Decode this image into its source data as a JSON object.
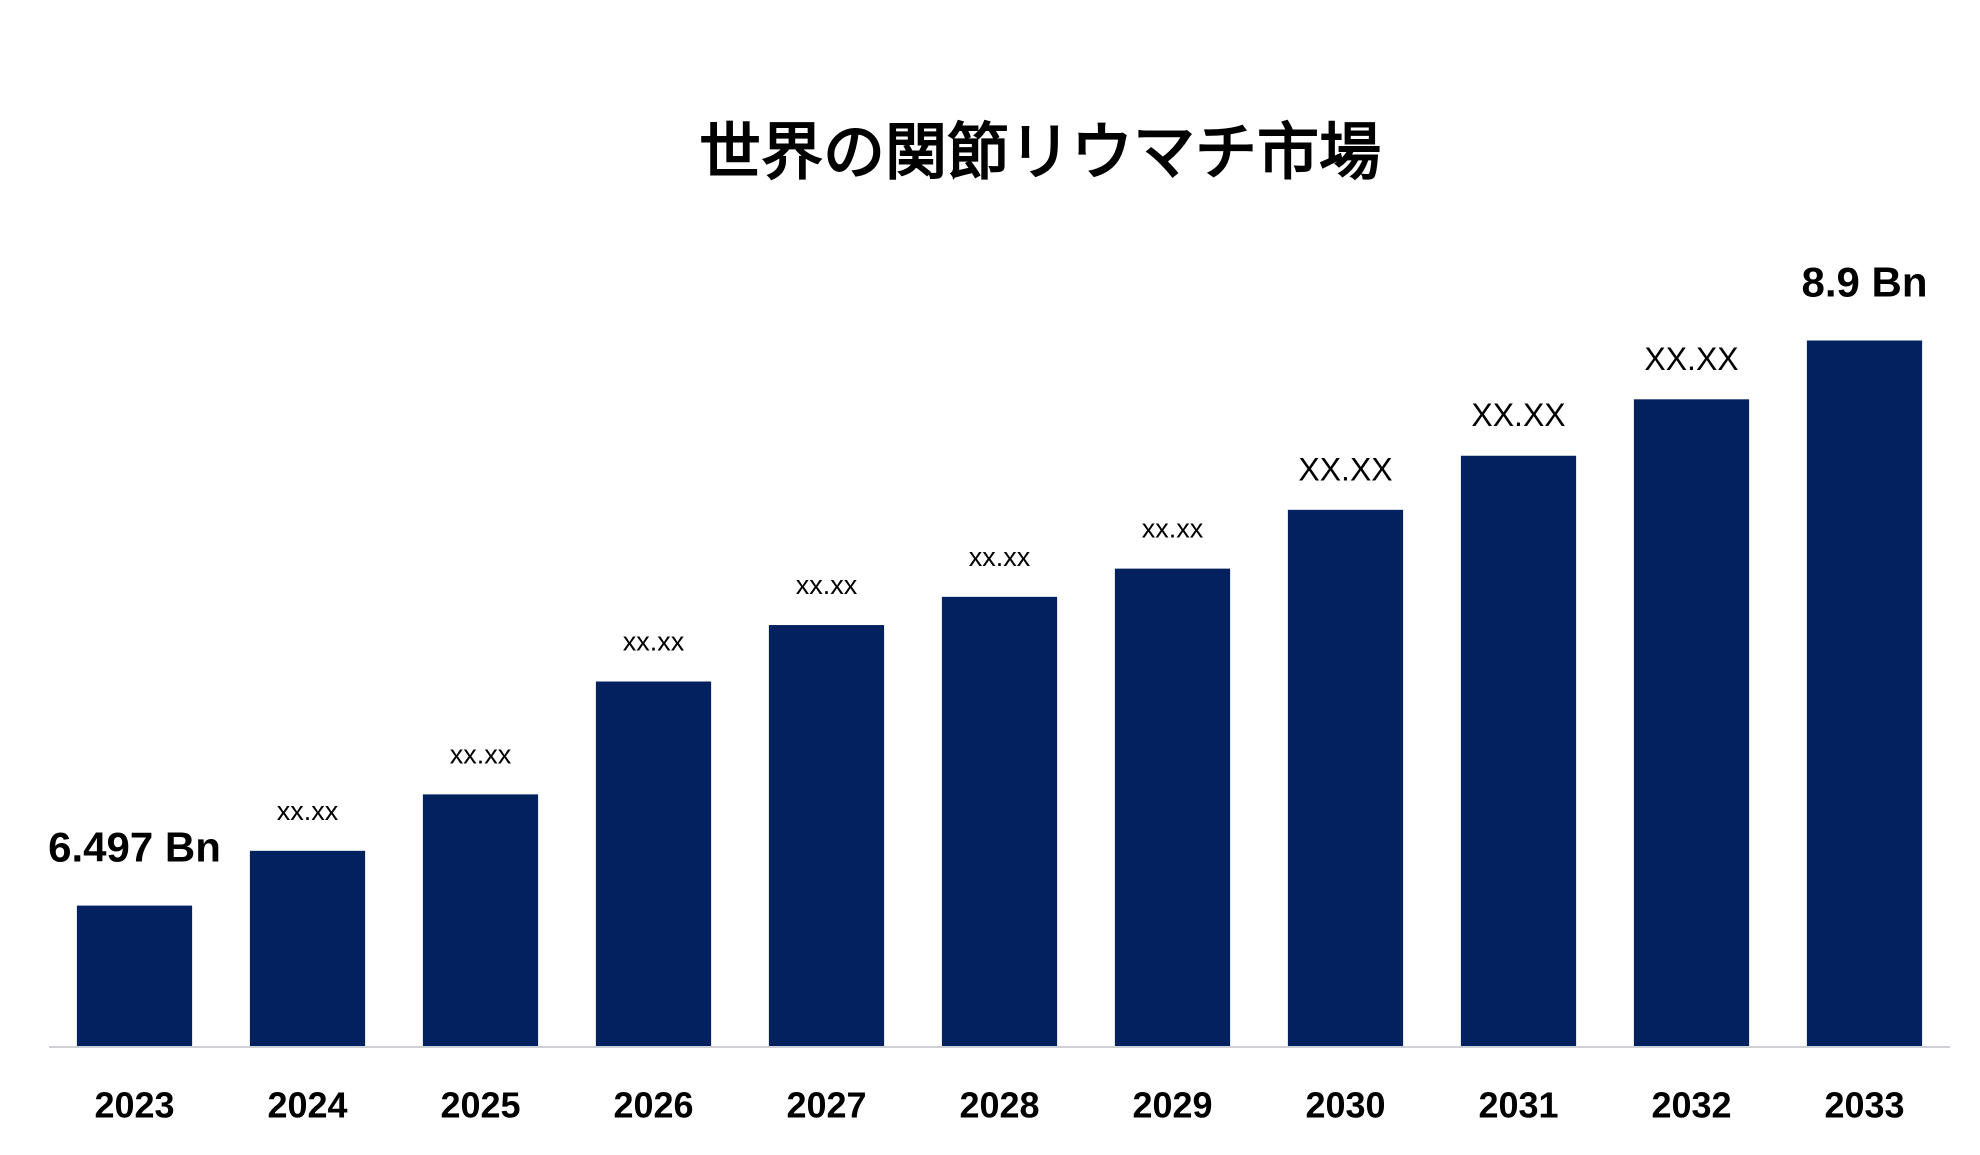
{
  "chart_data": {
    "type": "bar",
    "title": "世界の関節リウマチ市場",
    "categories": [
      "2023",
      "2024",
      "2025",
      "2026",
      "2027",
      "2028",
      "2029",
      "2030",
      "2031",
      "2032",
      "2033"
    ],
    "values": [
      6.497,
      6.73,
      6.97,
      7.45,
      7.69,
      7.81,
      7.93,
      8.18,
      8.41,
      8.65,
      8.9
    ],
    "value_labels": [
      "6.497 Bn",
      "xx.xx",
      "xx.xx",
      "xx.xx",
      "xx.xx",
      "xx.xx",
      "xx.xx",
      "XX.XX",
      "XX.XX",
      "XX.XX",
      "8.9 Bn"
    ],
    "color": "#03215e",
    "ylim": [
      5.9,
      9.0
    ]
  }
}
